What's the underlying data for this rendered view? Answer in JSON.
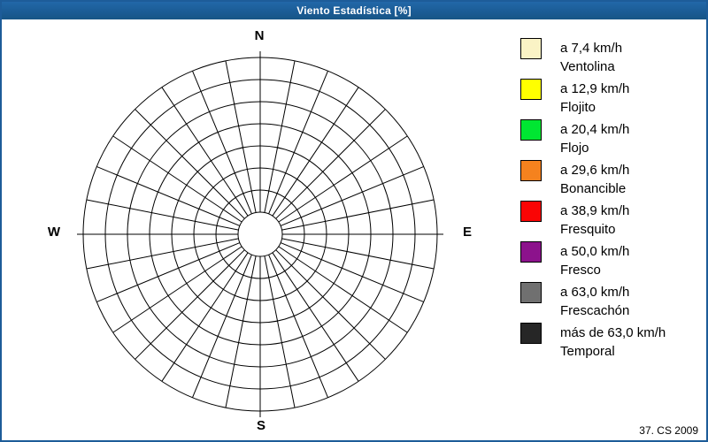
{
  "window": {
    "title": "Viento Estadística [%]",
    "footer": "37. CS 2009",
    "border_color": "#1D5C99",
    "titlebar_color": "#1B5C96"
  },
  "chart_data": {
    "type": "wind-rose",
    "title": "Viento Estadística [%]",
    "units": "%",
    "direction_labels": {
      "north": "N",
      "east": "E",
      "south": "S",
      "west": "W"
    },
    "num_sectors": 32,
    "sector_angle_deg": 11.25,
    "num_rings": 8,
    "radial_tick_labels": [],
    "series": [],
    "note_visible_state": "empty polar grid, no data values plotted",
    "grid_color": "#000000",
    "legend_position": "right",
    "legend": [
      {
        "speed": "a 7,4 km/h",
        "name": "Ventolina",
        "color": "#FAF3C5"
      },
      {
        "speed": "a 12,9 km/h",
        "name": "Flojito",
        "color": "#FFFF00"
      },
      {
        "speed": "a 20,4 km/h",
        "name": "Flojo",
        "color": "#00E632"
      },
      {
        "speed": "a 29,6 km/h",
        "name": "Bonancible",
        "color": "#F5821E"
      },
      {
        "speed": "a 38,9 km/h",
        "name": "Fresquito",
        "color": "#FA0505"
      },
      {
        "speed": "a 50,0 km/h",
        "name": "Fresco",
        "color": "#8C128C"
      },
      {
        "speed": "a 63,0 km/h",
        "name": "Frescachón",
        "color": "#707070"
      },
      {
        "speed": "más de 63,0 km/h",
        "name": "Temporal",
        "color": "#262626"
      }
    ]
  }
}
